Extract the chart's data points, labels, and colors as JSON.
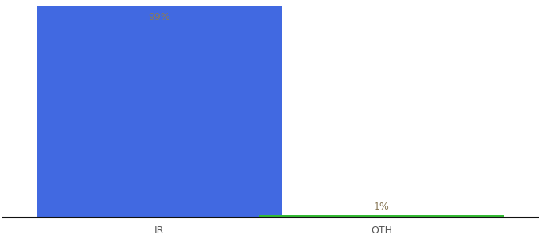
{
  "categories": [
    "IR",
    "OTH"
  ],
  "values": [
    99,
    1
  ],
  "bar_colors": [
    "#4169e1",
    "#33bb33"
  ],
  "label_texts": [
    "99%",
    "1%"
  ],
  "background_color": "#ffffff",
  "ylim": [
    0,
    100
  ],
  "bar_width": 0.55,
  "label_color_inside": "#8a7a5a",
  "label_color_outside": "#8a7a5a",
  "label_fontsize": 9,
  "tick_fontsize": 9,
  "x_positions": [
    0.25,
    0.75
  ]
}
